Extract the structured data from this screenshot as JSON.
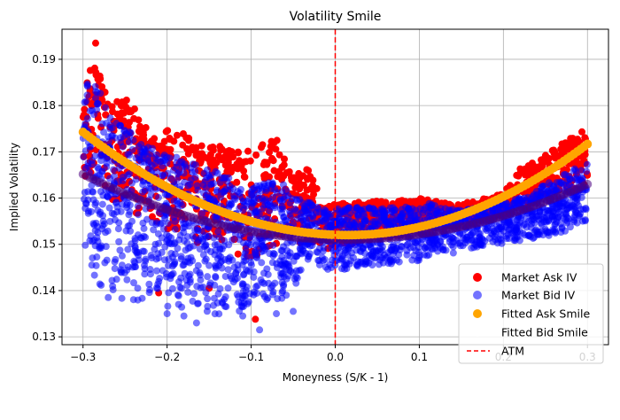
{
  "chart_data": {
    "type": "scatter",
    "title": "Volatility Smile",
    "xlabel": "Moneyness (S/K - 1)",
    "ylabel": "Implied Volatility",
    "xlim": [
      -0.325,
      0.325
    ],
    "ylim": [
      0.1283,
      0.1965
    ],
    "x_ticks": [
      -0.3,
      -0.2,
      -0.1,
      0.0,
      0.1,
      0.2,
      0.3
    ],
    "x_tick_labels": [
      "−0.3",
      "−0.2",
      "−0.1",
      "0.0",
      "0.1",
      "0.2",
      "0.3"
    ],
    "y_ticks": [
      0.13,
      0.14,
      0.15,
      0.16,
      0.17,
      0.18,
      0.19
    ],
    "y_tick_labels": [
      "0.13",
      "0.14",
      "0.15",
      "0.16",
      "0.17",
      "0.18",
      "0.19"
    ],
    "grid": true,
    "legend_position": "lower-right",
    "atm_x": 0.0,
    "series": [
      {
        "name": "Market Ask IV",
        "color": "#ff0000",
        "alpha": 1.0,
        "marker": "dot",
        "x": [
          -0.3,
          -0.29,
          -0.28,
          -0.27,
          -0.25,
          -0.22,
          -0.19,
          -0.16,
          -0.13,
          -0.1,
          -0.07,
          -0.05,
          -0.035,
          -0.01,
          0.02,
          0.05,
          0.08,
          0.11,
          0.14,
          0.17,
          0.2,
          0.22,
          0.24,
          0.26,
          0.28,
          0.3
        ],
        "y": [
          0.189,
          0.193,
          0.188,
          0.18,
          0.183,
          0.174,
          0.175,
          0.172,
          0.171,
          0.1705,
          0.1735,
          0.165,
          0.167,
          0.1585,
          0.159,
          0.1595,
          0.1595,
          0.16,
          0.1585,
          0.1595,
          0.161,
          0.1665,
          0.168,
          0.171,
          0.173,
          0.1755
        ],
        "y_low": [
          0.164,
          0.163,
          0.161,
          0.16,
          0.158,
          0.155,
          0.152,
          0.15,
          0.148,
          0.147,
          0.148,
          0.149,
          0.15,
          0.149,
          0.15,
          0.151,
          0.152,
          0.153,
          0.154,
          0.155,
          0.156,
          0.158,
          0.159,
          0.16,
          0.161,
          0.162
        ],
        "outliers_x": [
          -0.285,
          -0.095,
          -0.21,
          -0.15
        ],
        "outliers_y": [
          0.1935,
          0.1338,
          0.1395,
          0.1405
        ]
      },
      {
        "name": "Market Bid IV",
        "color": "#0000ff",
        "alpha": 0.55,
        "marker": "dot",
        "x": [
          -0.3,
          -0.29,
          -0.28,
          -0.27,
          -0.25,
          -0.22,
          -0.19,
          -0.16,
          -0.13,
          -0.1,
          -0.07,
          -0.05,
          -0.035,
          -0.01,
          0.02,
          0.05,
          0.08,
          0.11,
          0.14,
          0.17,
          0.2,
          0.22,
          0.24,
          0.26,
          0.28,
          0.3
        ],
        "y": [
          0.187,
          0.186,
          0.183,
          0.178,
          0.176,
          0.171,
          0.169,
          0.167,
          0.165,
          0.162,
          0.165,
          0.16,
          0.16,
          0.1575,
          0.158,
          0.158,
          0.158,
          0.159,
          0.1575,
          0.158,
          0.159,
          0.16,
          0.162,
          0.164,
          0.166,
          0.168
        ],
        "y_low": [
          0.145,
          0.144,
          0.141,
          0.139,
          0.138,
          0.137,
          0.1355,
          0.1345,
          0.1345,
          0.1355,
          0.137,
          0.14,
          0.145,
          0.144,
          0.1445,
          0.1455,
          0.146,
          0.1465,
          0.148,
          0.149,
          0.15,
          0.1505,
          0.151,
          0.152,
          0.153,
          0.154
        ],
        "outliers_x": [
          -0.27,
          -0.255,
          -0.2,
          -0.18,
          -0.165,
          -0.11,
          -0.09,
          -0.07,
          -0.05,
          -0.115
        ],
        "outliers_y": [
          0.1385,
          0.1445,
          0.135,
          0.1345,
          0.133,
          0.1345,
          0.1315,
          0.135,
          0.1355,
          0.1375
        ]
      },
      {
        "name": "Fitted Ask Smile",
        "color": "#ffa500",
        "alpha": 1.0,
        "marker": "dot",
        "curve": {
          "vertex_x": 0.015,
          "vertex_y": 0.152,
          "a_left": 0.2244,
          "a_right": 0.2423
        }
      },
      {
        "name": "Fitted Bid Smile",
        "color": "#4b0082",
        "alpha": 0.55,
        "marker": "dot",
        "curve": {
          "vertex_x": 0.01,
          "vertex_y": 0.151,
          "a_left": 0.1474,
          "a_right": 0.1427
        }
      }
    ],
    "reference_lines": [
      {
        "name": "ATM",
        "color": "#ff0000",
        "style": "dashed",
        "x": 0.0
      }
    ]
  }
}
